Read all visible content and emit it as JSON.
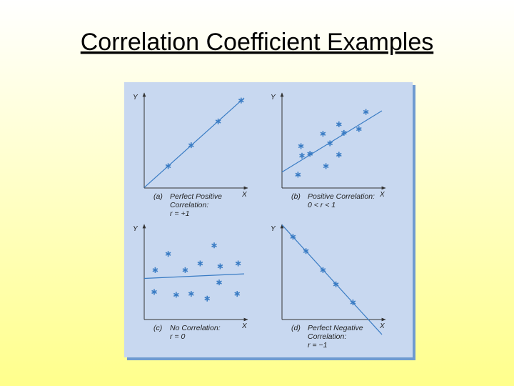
{
  "title": "Correlation Coefficient Examples",
  "chart_data": [
    {
      "type": "scatter",
      "tag": "(a)",
      "caption": [
        "Perfect Positive",
        "Correlation:",
        "r = +1"
      ],
      "x_label": "X",
      "y_label": "Y",
      "xlim": [
        0,
        10
      ],
      "ylim": [
        0,
        10
      ],
      "trendline": true,
      "color": "#3a7cc4",
      "x": [
        2.4,
        4.7,
        7.4,
        9.7
      ],
      "y": [
        2.3,
        4.5,
        7.0,
        9.2
      ]
    },
    {
      "type": "scatter",
      "tag": "(b)",
      "caption": [
        "Positive Correlation:",
        "0 < r < 1"
      ],
      "x_label": "X",
      "y_label": "Y",
      "xlim": [
        0,
        10
      ],
      "ylim": [
        0,
        10
      ],
      "trendline": true,
      "color": "#3a7cc4",
      "x": [
        1.6,
        1.9,
        2.0,
        2.8,
        4.1,
        4.4,
        4.8,
        5.7,
        6.2,
        5.7,
        7.7,
        8.4
      ],
      "y": [
        1.4,
        4.4,
        3.4,
        3.6,
        5.7,
        2.3,
        4.7,
        6.7,
        5.8,
        3.5,
        6.2,
        8.0
      ]
    },
    {
      "type": "scatter",
      "tag": "(c)",
      "caption": [
        "No Correlation:",
        "r = 0"
      ],
      "x_label": "X",
      "y_label": "Y",
      "xlim": [
        0,
        10
      ],
      "ylim": [
        0,
        10
      ],
      "trendline": true,
      "color": "#3a7cc4",
      "x": [
        1.1,
        1.0,
        2.4,
        3.2,
        4.1,
        4.7,
        5.6,
        6.3,
        7.0,
        7.6,
        7.5,
        9.4,
        9.3
      ],
      "y": [
        5.2,
        2.9,
        6.9,
        2.6,
        5.2,
        2.7,
        5.9,
        2.2,
        7.8,
        5.6,
        3.9,
        5.9,
        2.7
      ]
    },
    {
      "type": "scatter",
      "tag": "(d)",
      "caption": [
        "Perfect Negative",
        "Correlation:",
        "r = −1"
      ],
      "x_label": "X",
      "y_label": "Y",
      "xlim": [
        0,
        10
      ],
      "ylim": [
        0,
        10
      ],
      "trendline": true,
      "color": "#3a7cc4",
      "x": [
        1.1,
        2.4,
        4.1,
        5.4,
        7.1
      ],
      "y": [
        8.7,
        7.2,
        5.2,
        3.7,
        1.8
      ]
    }
  ]
}
